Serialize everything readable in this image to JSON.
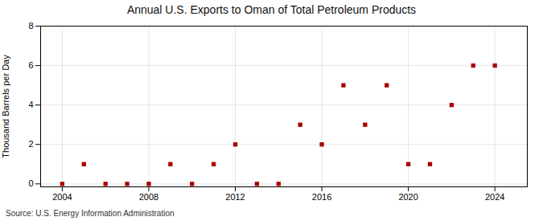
{
  "chart_data": {
    "type": "scatter",
    "title": "Annual U.S. Exports to Oman of Total Petroleum Products",
    "ylabel": "Thousand Barrels per Day",
    "source": "Source: U.S. Energy Information Administration",
    "x": [
      2004,
      2005,
      2006,
      2007,
      2008,
      2009,
      2010,
      2011,
      2012,
      2013,
      2014,
      2015,
      2016,
      2017,
      2018,
      2019,
      2020,
      2021,
      2022,
      2023,
      2024
    ],
    "values": [
      0,
      1,
      0,
      0,
      0,
      1,
      0,
      1,
      2,
      0,
      0,
      3,
      2,
      5,
      3,
      5,
      1,
      1,
      4,
      6,
      6
    ],
    "color": "#aa0000",
    "marker": "square",
    "xlim": [
      2003.0,
      2025.5
    ],
    "xticks": [
      2004,
      2008,
      2012,
      2016,
      2020,
      2024
    ],
    "ylim": [
      -0.15,
      8
    ],
    "yticks": [
      0,
      2,
      4,
      6,
      8
    ],
    "grid": true
  }
}
